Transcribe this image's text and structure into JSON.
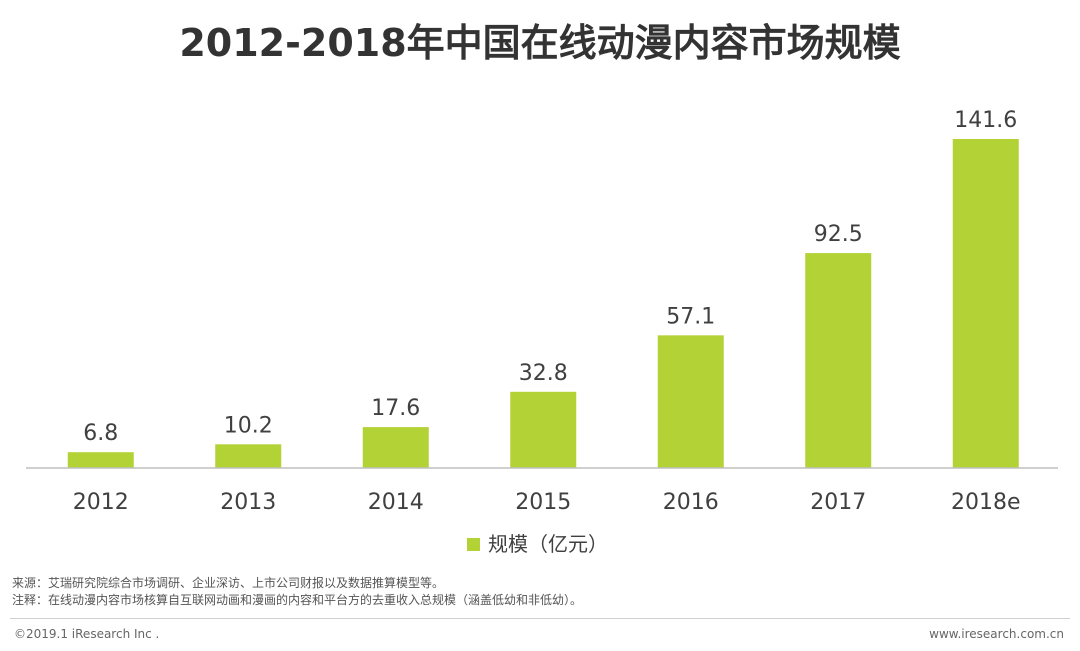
{
  "chart_data": {
    "type": "bar",
    "title": "2012-2018年中国在线动漫内容市场规模",
    "categories": [
      "2012",
      "2013",
      "2014",
      "2015",
      "2016",
      "2017",
      "2018e"
    ],
    "series": [
      {
        "name": "规模（亿元）",
        "values": [
          6.8,
          10.2,
          17.6,
          32.8,
          57.1,
          92.5,
          141.6
        ],
        "labels": [
          "6.8",
          "10.2",
          "17.6",
          "32.8",
          "57.1",
          "92.5",
          "141.6"
        ]
      }
    ],
    "ylim": [
      0,
      141.6
    ],
    "xlabel": "",
    "ylabel": "",
    "legend_position": "bottom-center",
    "grid": false,
    "colors": {
      "bar": "#b2d235",
      "axis": "#bfbfbf",
      "text": "#404040"
    }
  },
  "notes": {
    "source": "来源：艾瑞研究院综合市场调研、企业深访、上市公司财报以及数据推算模型等。",
    "annotation": "注释：在线动漫内容市场核算自互联网动画和漫画的内容和平台方的去重收入总规模（涵盖低幼和非低幼）。"
  },
  "footer": {
    "copyright": "©2019.1 iResearch Inc .",
    "website": "www.iresearch.com.cn"
  }
}
